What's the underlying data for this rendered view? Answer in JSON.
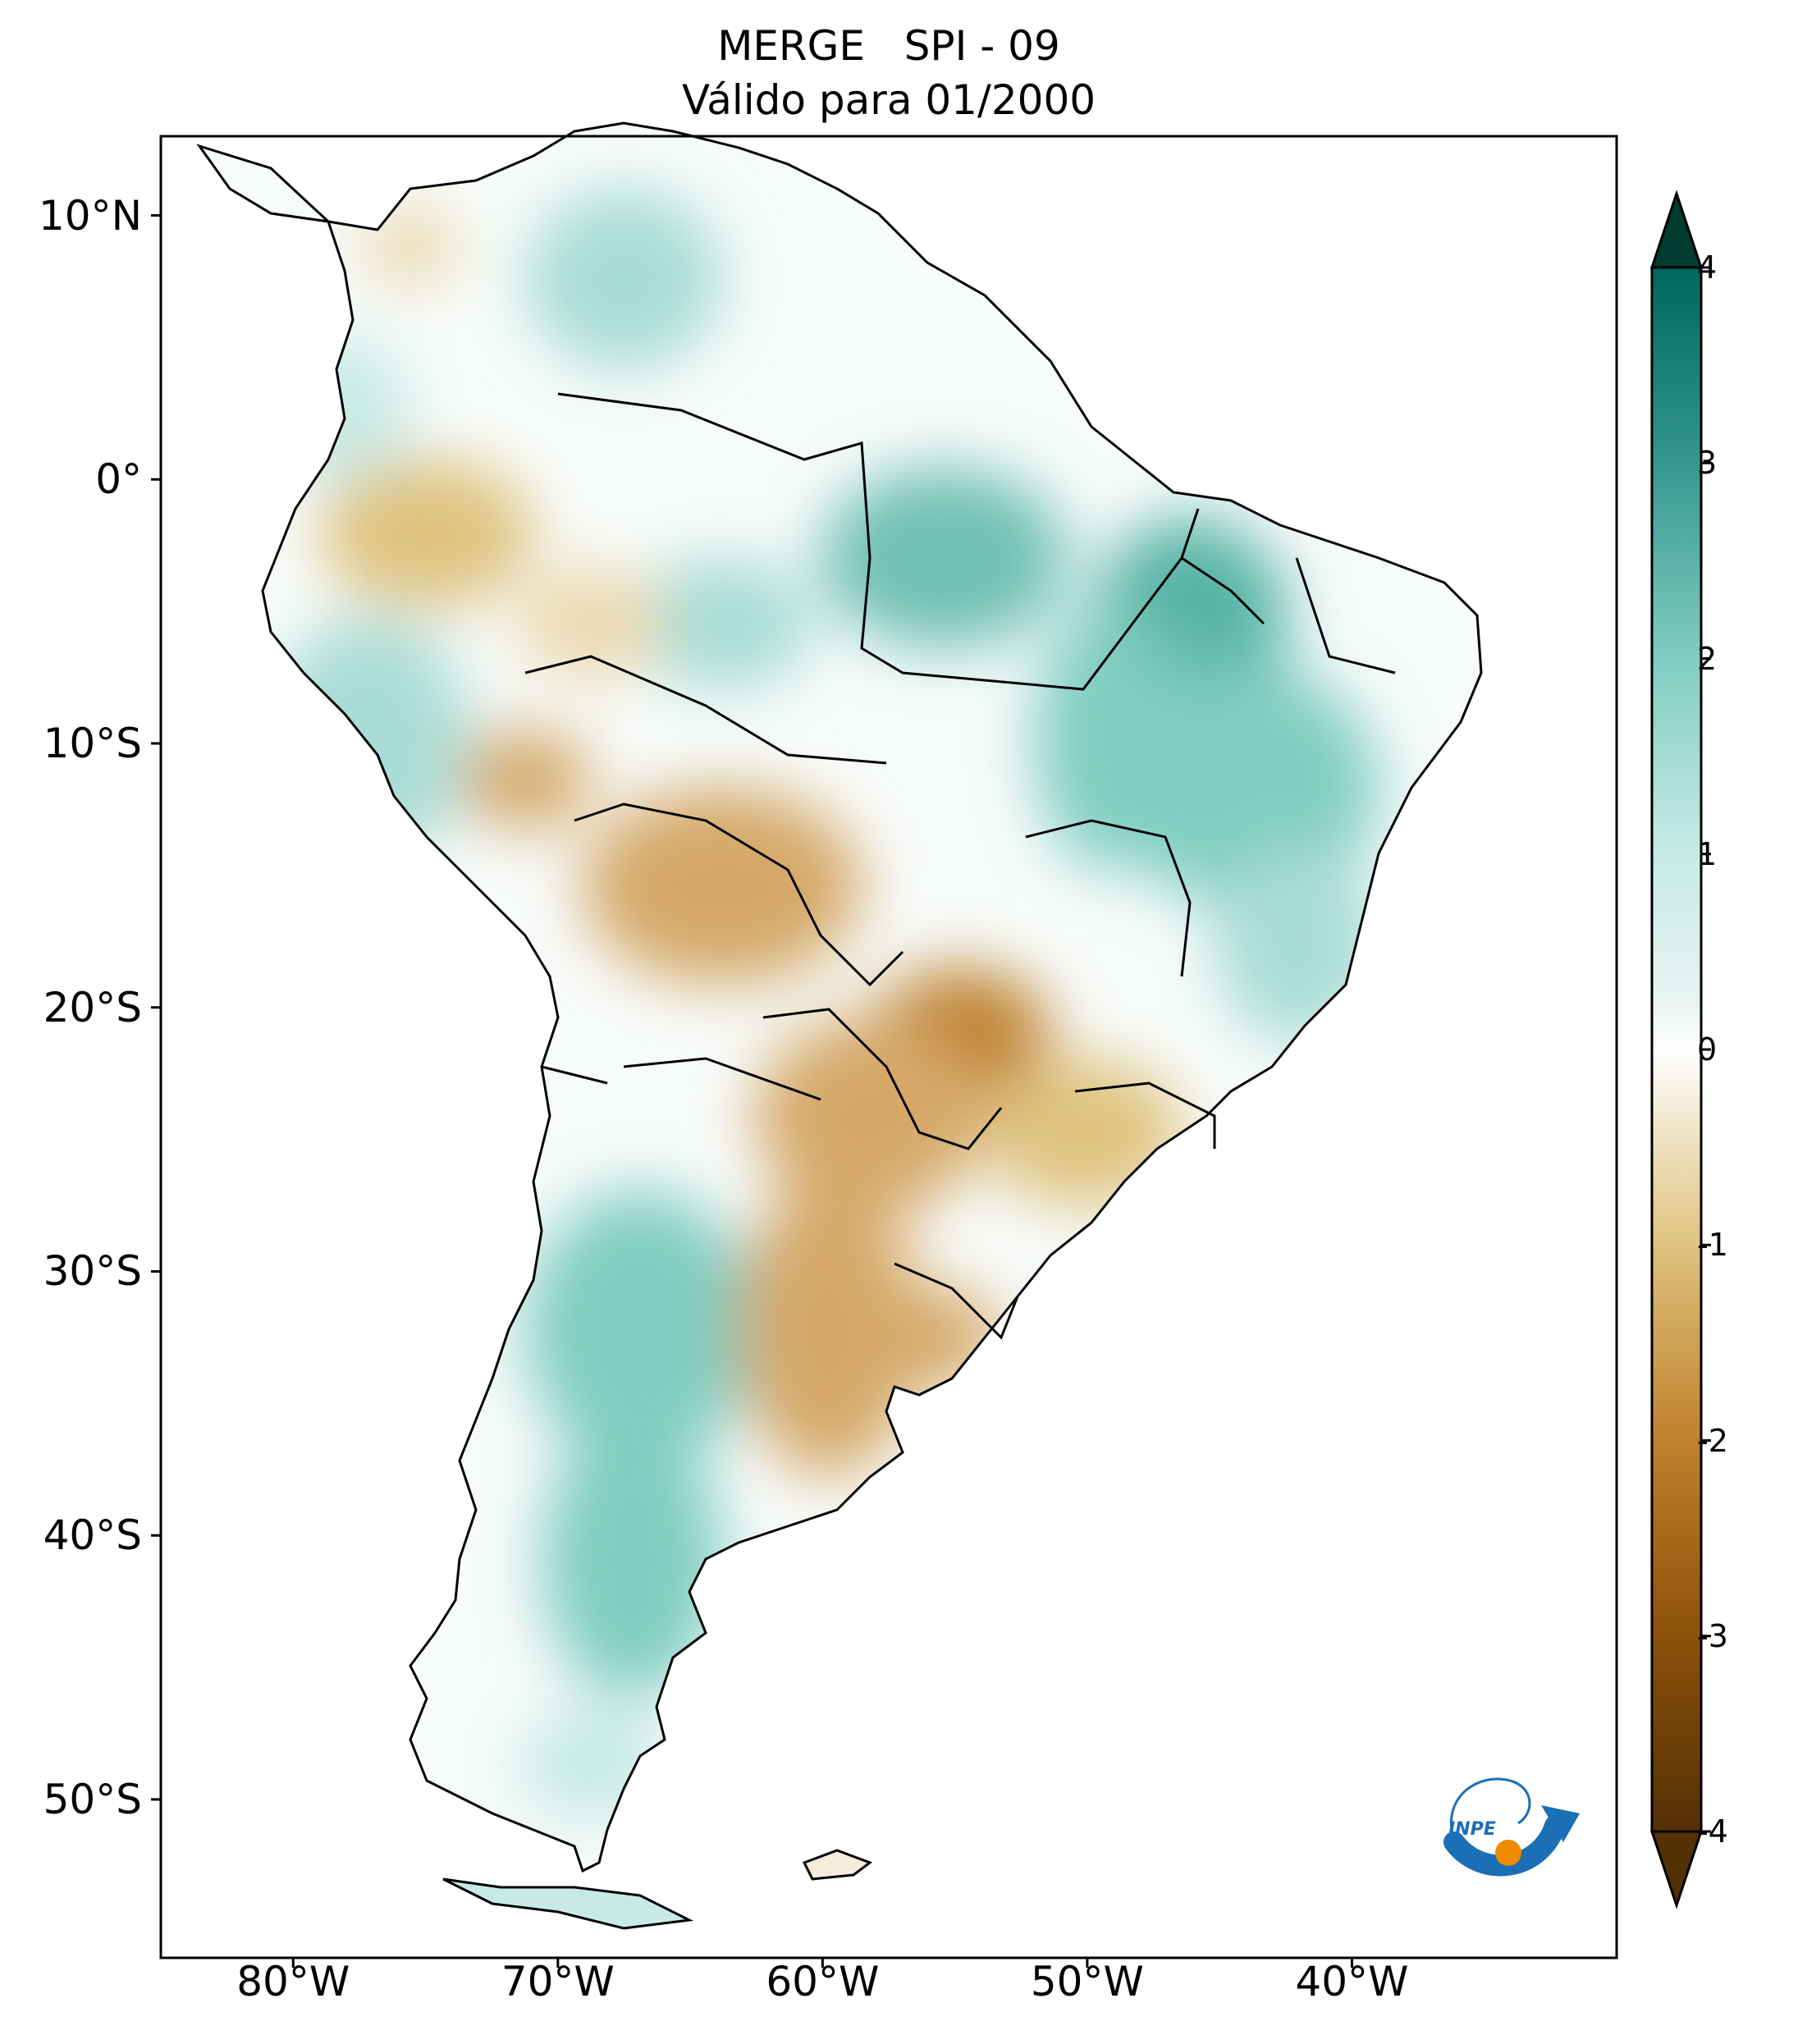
{
  "title": {
    "line1": "MERGE   SPI - 09",
    "line2": "Válido para 01/2000"
  },
  "axes": {
    "lat_ticks": [
      {
        "label": "10°N",
        "value": 10
      },
      {
        "label": "0°",
        "value": 0
      },
      {
        "label": "10°S",
        "value": -10
      },
      {
        "label": "20°S",
        "value": -20
      },
      {
        "label": "30°S",
        "value": -30
      },
      {
        "label": "40°S",
        "value": -40
      },
      {
        "label": "50°S",
        "value": -50
      }
    ],
    "lon_ticks": [
      {
        "label": "80°W",
        "value": -80
      },
      {
        "label": "70°W",
        "value": -70
      },
      {
        "label": "60°W",
        "value": -60
      },
      {
        "label": "50°W",
        "value": -50
      },
      {
        "label": "40°W",
        "value": -40
      }
    ],
    "lon_range": [
      -85,
      -30
    ],
    "lat_range": [
      -56,
      13
    ]
  },
  "colorbar": {
    "ticks": [
      {
        "label": "4",
        "value": 4
      },
      {
        "label": "3",
        "value": 3
      },
      {
        "label": "2",
        "value": 2
      },
      {
        "label": "1",
        "value": 1
      },
      {
        "label": "0",
        "value": 0
      },
      {
        "label": "-1",
        "value": -1
      },
      {
        "label": "-2",
        "value": -2
      },
      {
        "label": "-3",
        "value": -3
      },
      {
        "label": "-4",
        "value": -4
      }
    ],
    "range": [
      -4,
      4
    ],
    "extend": "both",
    "colors": {
      "min": "#543005",
      "dry3": "#8c510a",
      "dry2": "#bf812d",
      "dry1": "#dfc27d",
      "neutral": "#ffffff",
      "wet1": "#c7eae5",
      "wet2": "#80cdc1",
      "wet3": "#35978f",
      "max": "#003c30"
    }
  },
  "logo": {
    "text": "INPE",
    "blue": "#1a6fb5",
    "orange": "#f08a00"
  }
}
